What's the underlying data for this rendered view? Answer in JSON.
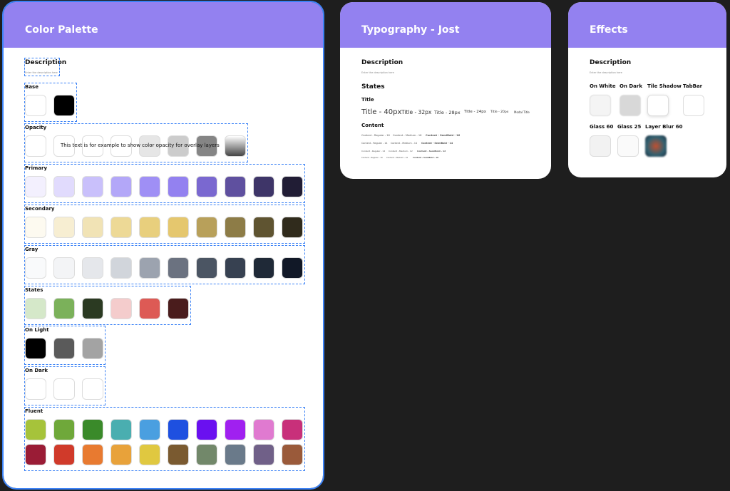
{
  "palette": {
    "title": "Color Palette",
    "description": "Description",
    "hint": "Enter the description here",
    "opacity_note": "This text is for example to show color opacity for overlay layers",
    "groups": [
      {
        "label": "Base",
        "colors": [
          "#ffffff",
          "#000000"
        ]
      },
      {
        "label": "Opacity",
        "colors": [
          "#ffffff",
          "#ffffff",
          "#ffffff",
          "#ffffff",
          "#e6e6e6",
          "#cccccc",
          "#858585",
          "linear-gradient(#ffffff,#444444)"
        ]
      },
      {
        "label": "Primary",
        "colors": [
          "#f3f0fe",
          "#e1dbfd",
          "#c9c0fb",
          "#b3a7f8",
          "#9f8ff5",
          "#9381f0",
          "#7a68d0",
          "#5f509f",
          "#3e3568",
          "#211d35"
        ]
      },
      {
        "label": "Secondary",
        "colors": [
          "#fdfaf0",
          "#f7eed2",
          "#f1e3b5",
          "#edd996",
          "#e8cf7d",
          "#e5c76e",
          "#b8a05a",
          "#8d7c47",
          "#5f5431",
          "#302b1c"
        ]
      },
      {
        "label": "Gray",
        "colors": [
          "#f9fafb",
          "#f3f4f6",
          "#e5e7eb",
          "#d1d5db",
          "#9ca3af",
          "#6b7280",
          "#4b5563",
          "#374151",
          "#1f2937",
          "#111827"
        ]
      },
      {
        "label": "States",
        "colors": [
          "#d5e8c9",
          "#7bb15a",
          "#2b3a22",
          "#f4cccc",
          "#dd5a55",
          "#4a1c1c"
        ]
      },
      {
        "label": "On Light",
        "colors": [
          "#000000",
          "#5a5a5a",
          "#a3a3a3"
        ]
      },
      {
        "label": "On Dark",
        "colors": [
          "#ffffff",
          "#ffffff",
          "#ffffff"
        ]
      },
      {
        "label": "Fluent",
        "colors": [
          "#a6c33a",
          "#6fa83a",
          "#3a8a2a",
          "#4aaeb0",
          "#4a9fe0",
          "#1e50e0",
          "#6a10f0",
          "#a020f0",
          "#e07ad0",
          "#c8307a",
          "#9a1c36",
          "#d03a2a",
          "#e87a30",
          "#e8a23a",
          "#e0c840",
          "#7a5a30",
          "#72886a",
          "#6a7a8a",
          "#706088",
          "#9a5a3a"
        ]
      }
    ]
  },
  "typography": {
    "title": "Typography - Jost",
    "description": "Description",
    "hint": "Enter the description here",
    "states": "States",
    "title_label": "Title",
    "titles": [
      "Title - 40px",
      "Title - 32px",
      "Title - 28px",
      "Title - 24px",
      "Title - 20px",
      "Modal Title"
    ],
    "content_label": "Content",
    "content": [
      [
        "Content - Regular - 16",
        "Content - Medium - 16",
        "Content - SemiBold - 16"
      ],
      [
        "Content - Regular - 14",
        "Content - Medium - 14",
        "Content - SemiBold - 14"
      ],
      [
        "Content - Regular - 12",
        "Content - Medium - 12",
        "Content - SemiBold - 12"
      ],
      [
        "Content - Regular - 10",
        "Content - Medium - 10",
        "Content - SemiBold - 10"
      ]
    ]
  },
  "effects": {
    "title": "Effects",
    "description": "Description",
    "hint": "Enter the description here",
    "row1": [
      "On White",
      "On Dark",
      "Tile Shadow",
      "TabBar"
    ],
    "row2": [
      "Glass 60",
      "Glass 25",
      "Layer Blur 60"
    ]
  }
}
